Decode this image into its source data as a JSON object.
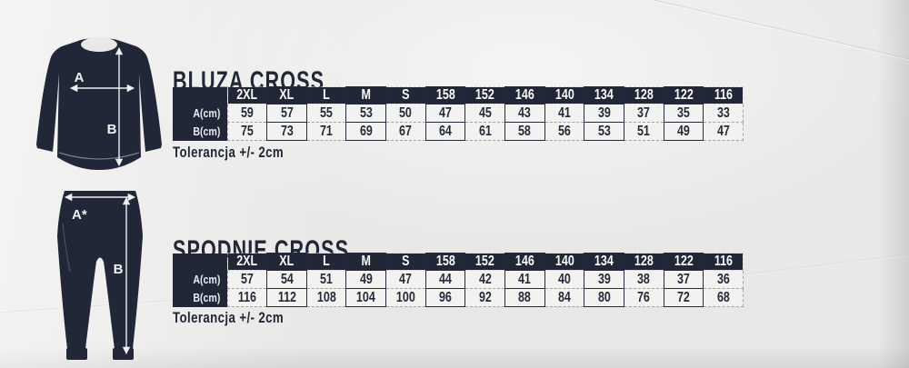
{
  "colors": {
    "navy": "#212737",
    "paper": "#e8e8e6",
    "cell_background": "#f2f2f0",
    "dashed_border": "#9fa2a7",
    "arrow_white": "#eff1f3"
  },
  "illustrations": {
    "sweatshirt": {
      "label_a": "A",
      "label_b": "B"
    },
    "pants": {
      "label_a": "A*",
      "label_b": "B"
    }
  },
  "sections": [
    {
      "title": "BLUZA CROSS",
      "tolerance": "Tolerancja +/- 2cm",
      "table": {
        "columns": [
          "2XL",
          "XL",
          "L",
          "M",
          "S",
          "158",
          "152",
          "146",
          "140",
          "134",
          "128",
          "122",
          "116"
        ],
        "rows": [
          {
            "label": "A(cm)",
            "values": [
              59,
              57,
              55,
              53,
              50,
              47,
              45,
              43,
              41,
              39,
              37,
              35,
              33
            ]
          },
          {
            "label": "B(cm)",
            "values": [
              75,
              73,
              71,
              69,
              67,
              64,
              61,
              58,
              56,
              53,
              51,
              49,
              47
            ]
          }
        ]
      }
    },
    {
      "title": "SPODNIE CROSS",
      "tolerance": "Tolerancja +/- 2cm",
      "table": {
        "columns": [
          "2XL",
          "XL",
          "L",
          "M",
          "S",
          "158",
          "152",
          "146",
          "140",
          "134",
          "128",
          "122",
          "116"
        ],
        "rows": [
          {
            "label": "A(cm)",
            "values": [
              57,
              54,
              51,
              49,
              47,
              44,
              42,
              41,
              40,
              39,
              38,
              37,
              36
            ]
          },
          {
            "label": "B(cm)",
            "values": [
              116,
              112,
              108,
              104,
              100,
              96,
              92,
              88,
              84,
              80,
              76,
              72,
              68
            ]
          }
        ]
      }
    }
  ]
}
